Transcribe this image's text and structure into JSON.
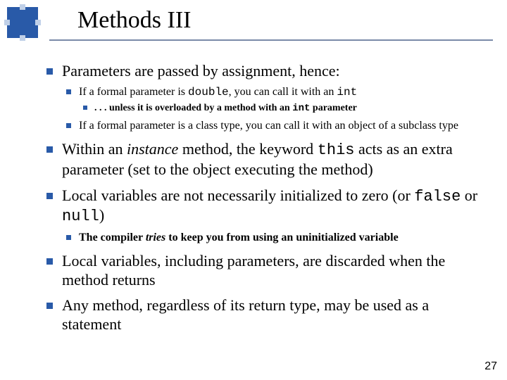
{
  "page_number": "27",
  "title": "Methods III",
  "colors": {
    "accent": "#295aa8",
    "rule": "#7a8aa8",
    "bg": "#ffffff",
    "text": "#000000"
  },
  "fonts": {
    "body": "Times New Roman",
    "code": "Courier New",
    "title_size": 34,
    "lvl1": 22,
    "lvl2": 16,
    "lvl3": 14
  },
  "b1": {
    "p0": "Parameters are passed by assignment, hence:",
    "s1": {
      "p0": "If a formal parameter is ",
      "p1": "double",
      "p2": ", you can call it with an ",
      "p3": "int",
      "ss1": {
        "p0": ". . . unless it is overloaded by a method with an ",
        "p1": "int",
        "p2": " parameter"
      }
    },
    "s2": "If a formal parameter is a class type, you can call it with an object of a subclass type"
  },
  "b2": {
    "p0": "Within an ",
    "p1": "instance",
    "p2": " method, the keyword ",
    "p3": "this",
    "p4": " acts as an extra parameter (set to the object executing the method)"
  },
  "b3": {
    "p0": "Local variables are not necessarily initialized to zero (or ",
    "p1": "false",
    "p2": " or ",
    "p3": "null",
    "p4": ")",
    "s1": {
      "p0": "The compiler ",
      "p1": "tries",
      "p2": " to keep you from using an uninitialized variable"
    }
  },
  "b4": "Local variables, including parameters, are discarded when the method returns",
  "b5": "Any method, regardless of its return type, may be used as a statement"
}
